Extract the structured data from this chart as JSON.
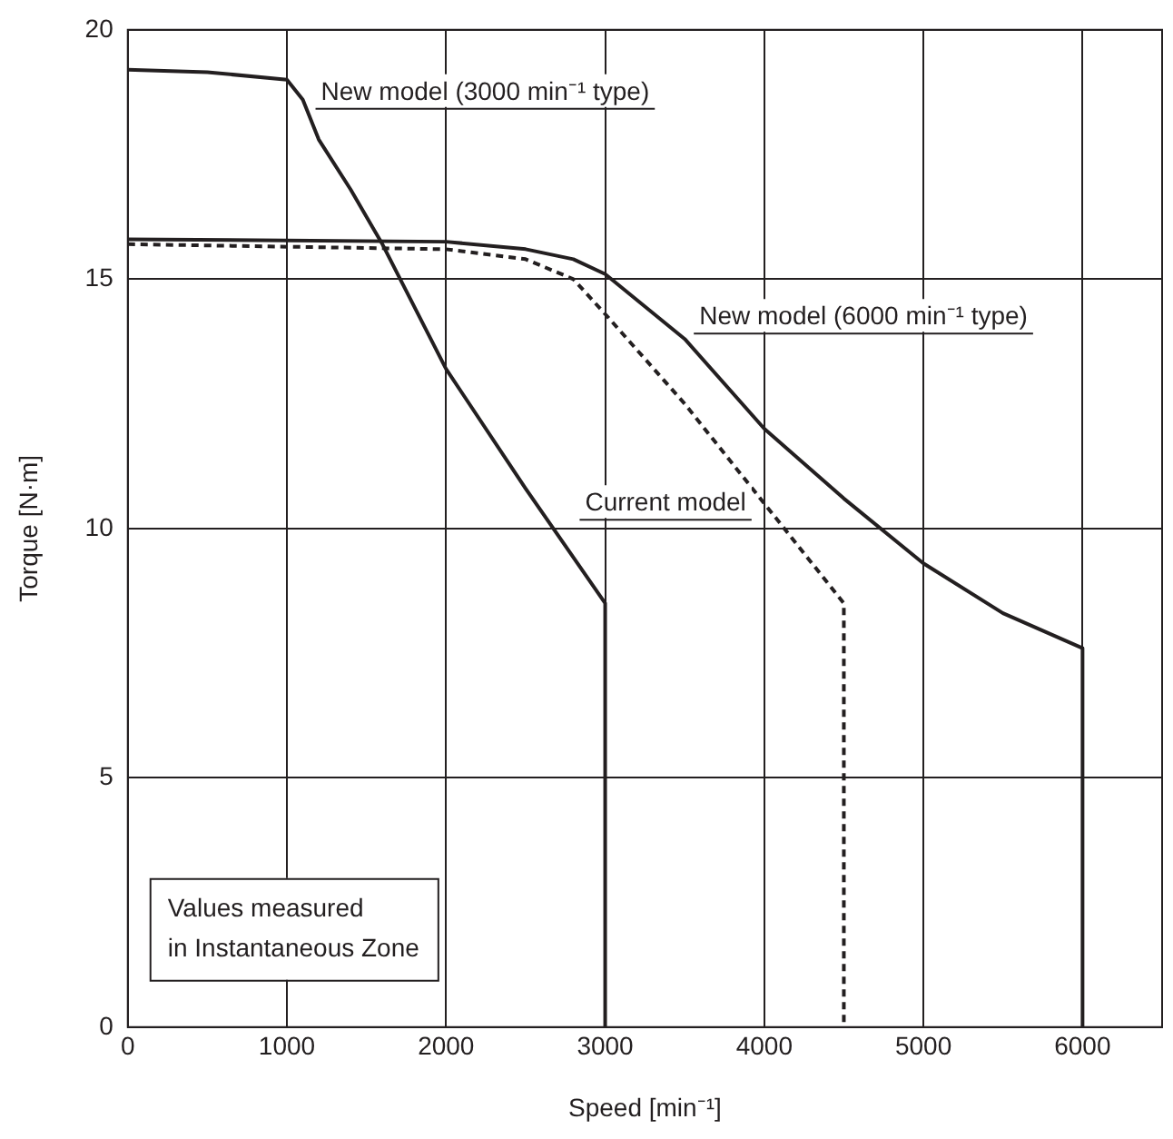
{
  "chart_data": {
    "type": "line",
    "xlabel": "Speed [min⁻¹]",
    "ylabel": "Torque [N·m]",
    "xlim": [
      0,
      6500
    ],
    "xticks": [
      0,
      1000,
      2000,
      3000,
      4000,
      5000,
      6000
    ],
    "ylim": [
      0,
      20
    ],
    "yticks": [
      0,
      5,
      10,
      15,
      20
    ],
    "grid": true,
    "legend": false,
    "marker": "none",
    "series": [
      {
        "name": "New model (3000 min⁻¹ type)",
        "color": "#231f20",
        "line_style": "solid",
        "x": [
          0,
          500,
          1000,
          1100,
          1200,
          1400,
          1600,
          2000,
          2500,
          3000,
          3000
        ],
        "values": [
          19.2,
          19.15,
          19.0,
          18.6,
          17.8,
          16.8,
          15.7,
          13.2,
          10.8,
          8.5,
          0
        ]
      },
      {
        "name": "New model (6000 min⁻¹ type)",
        "color": "#231f20",
        "line_style": "solid",
        "x": [
          0,
          2000,
          2500,
          2800,
          3000,
          3500,
          4000,
          4500,
          5000,
          5500,
          6000,
          6000
        ],
        "values": [
          15.8,
          15.75,
          15.6,
          15.4,
          15.1,
          13.8,
          12.0,
          10.6,
          9.3,
          8.3,
          7.6,
          0
        ]
      },
      {
        "name": "Current model",
        "color": "#231f20",
        "line_style": "dashed",
        "x": [
          0,
          2000,
          2500,
          2800,
          3000,
          3500,
          4000,
          4500,
          4500
        ],
        "values": [
          15.7,
          15.6,
          15.4,
          15.0,
          14.3,
          12.5,
          10.5,
          8.5,
          0
        ]
      }
    ],
    "annotations": [
      "Values measured\nin Instantaneous Zone"
    ]
  }
}
